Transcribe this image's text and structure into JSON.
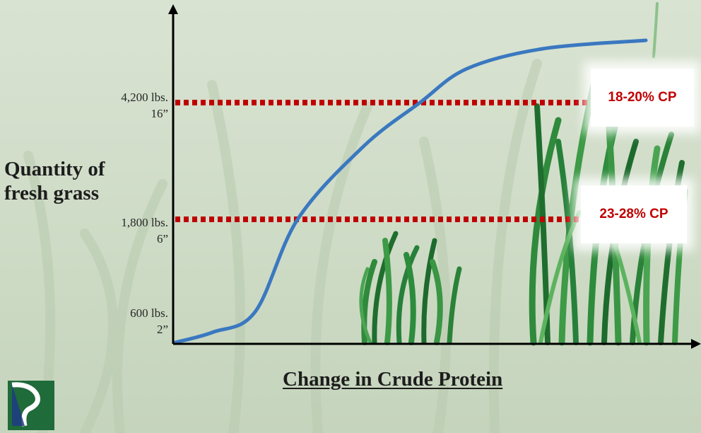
{
  "colors": {
    "curve": "#3a78c0",
    "threshold_line": "#c00000",
    "callout_text": "#c00000",
    "axis": "#000000",
    "logo_background": "#1f6b3a"
  },
  "icons": {
    "logo": "company-logo-icon"
  },
  "chart_data": {
    "type": "line",
    "title": "",
    "xlabel": "Change in Crude Protein",
    "ylabel": "Quantity of fresh grass",
    "y_ticks": [
      {
        "value": 600,
        "line1": "600 lbs.",
        "line2": "2”"
      },
      {
        "value": 1800,
        "line1": "1,800 lbs.",
        "line2": "6”"
      },
      {
        "value": 4200,
        "line1": "4,200 lbs.",
        "line2": "16”"
      }
    ],
    "series": [
      {
        "values": [
          [
            0,
            600
          ],
          [
            8,
            700
          ],
          [
            17,
            900
          ],
          [
            26,
            1800
          ],
          [
            40,
            3300
          ],
          [
            52,
            4200
          ],
          [
            62,
            4800
          ],
          [
            78,
            5150
          ],
          [
            100,
            5300
          ]
        ]
      }
    ],
    "thresholds": [
      {
        "y": 4200,
        "label": "18-20% CP"
      },
      {
        "y": 1800,
        "label": "23-28% CP"
      }
    ]
  }
}
